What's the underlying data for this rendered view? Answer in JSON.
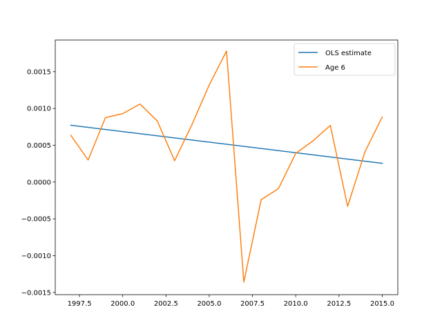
{
  "chart_data": {
    "type": "line",
    "x": [
      1997,
      1998,
      1999,
      2000,
      2001,
      2002,
      2003,
      2004,
      2005,
      2006,
      2007,
      2008,
      2009,
      2010,
      2011,
      2012,
      2013,
      2014,
      2015
    ],
    "series": [
      {
        "name": "OLS estimate",
        "color": "#1f77b4",
        "points": [
          [
            1997,
            0.000772
          ],
          [
            2015,
            0.000255
          ]
        ]
      },
      {
        "name": "Age 6",
        "color": "#ff7f0e",
        "points": [
          [
            1997,
            0.000635
          ],
          [
            1998,
            0.0003
          ],
          [
            1999,
            0.000875
          ],
          [
            2000,
            0.00093
          ],
          [
            2001,
            0.00106
          ],
          [
            2002,
            0.00083
          ],
          [
            2003,
            0.00029
          ],
          [
            2004,
            0.00078
          ],
          [
            2005,
            0.00132
          ],
          [
            2006,
            0.00178
          ],
          [
            2007,
            -0.00136
          ],
          [
            2008,
            -0.00024
          ],
          [
            2009,
            -9e-05
          ],
          [
            2010,
            0.00039
          ],
          [
            2011,
            0.00056
          ],
          [
            2012,
            0.00077
          ],
          [
            2013,
            -0.00033
          ],
          [
            2014,
            0.00041
          ],
          [
            2015,
            0.000885
          ]
        ]
      }
    ],
    "xlim": [
      1996.1,
      2015.9
    ],
    "ylim": [
      -0.00153,
      0.00193
    ],
    "xticks": [
      1997.5,
      2000.0,
      2002.5,
      2005.0,
      2007.5,
      2010.0,
      2012.5,
      2015.0
    ],
    "xtick_labels": [
      "1997.5",
      "2000.0",
      "2002.5",
      "2005.0",
      "2007.5",
      "2010.0",
      "2012.5",
      "2015.0"
    ],
    "yticks": [
      -0.0015,
      -0.001,
      -0.0005,
      0.0,
      0.0005,
      0.001,
      0.0015
    ],
    "ytick_labels": [
      "−0.0015",
      "−0.0010",
      "−0.0005",
      "0.0000",
      "0.0005",
      "0.0010",
      "0.0015"
    ],
    "grid": false,
    "legend_position": "upper-right",
    "title": "",
    "xlabel": "",
    "ylabel": ""
  }
}
